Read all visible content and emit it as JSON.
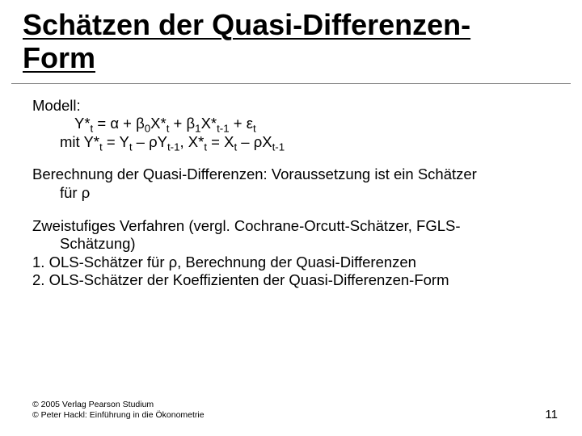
{
  "title_line1": "Schätzen der Quasi-Differenzen-",
  "title_line2": "Form",
  "model_label": "Modell:",
  "eq1_pre": "Y*",
  "eq1_sub1": "t",
  "eq1_a": " = α + β",
  "eq1_sub2": "0",
  "eq1_b": "X*",
  "eq1_sub3": "t",
  "eq1_c": " + β",
  "eq1_sub4": "1",
  "eq1_d": "X*",
  "eq1_sub5": "t-1",
  "eq1_e": " + ε",
  "eq1_sub6": "t",
  "eq2_pre": "mit Y*",
  "eq2_sub1": "t",
  "eq2_a": " = Y",
  "eq2_sub2": "t",
  "eq2_b": " – ρY",
  "eq2_sub3": "t-1",
  "eq2_c": ", X*",
  "eq2_sub4": "t",
  "eq2_d": " = X",
  "eq2_sub5": "t",
  "eq2_e": " – ρX",
  "eq2_sub6": "t-1",
  "para2_a": "Berechnung der Quasi-Differenzen: Voraussetzung ist ein Schätzer",
  "para2_b": "für ρ",
  "para3_a": "Zweistufiges Verfahren (vergl. Cochrane-Orcutt-Schätzer, FGLS-",
  "para3_b": "Schätzung)",
  "item1": "1.  OLS-Schätzer für ρ, Berechnung der Quasi-Differenzen",
  "item2": "2.  OLS-Schätzer der Koeffizienten der Quasi-Differenzen-Form",
  "footer1": "© 2005 Verlag Pearson Studium",
  "footer2": "© Peter Hackl: Einführung in die Ökonometrie",
  "pagenum": "11"
}
